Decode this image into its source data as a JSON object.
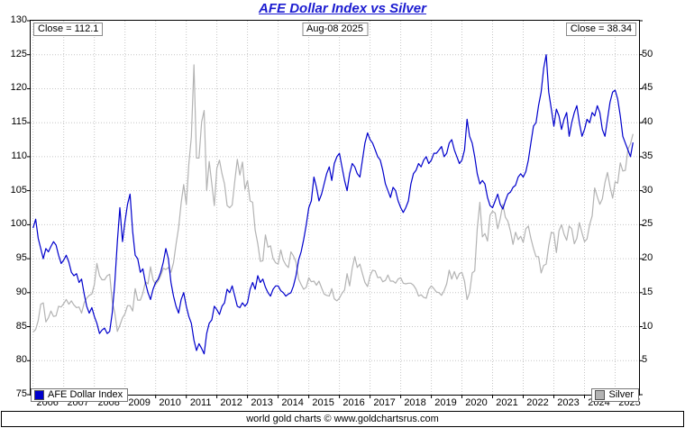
{
  "chart_data": {
    "type": "line",
    "title": "AFE Dollar Index vs Silver",
    "annotations": {
      "left_close": "Close = 112.1",
      "date": "Aug-08  2025",
      "right_close": "Close = 38.34"
    },
    "footer": "world gold charts © www.goldchartsrus.com",
    "colors": {
      "title": "#1b1bd0",
      "afe_line": "#0000cc",
      "silver_line": "#b3b3b3",
      "grid": "#c6c6c6",
      "border": "#000000"
    },
    "x_range": [
      2005.92,
      2025.78
    ],
    "x_start_year": 2006,
    "x_months_per_point": 1,
    "years": [
      2006,
      2007,
      2008,
      2009,
      2010,
      2011,
      2012,
      2013,
      2014,
      2015,
      2016,
      2017,
      2018,
      2019,
      2020,
      2021,
      2022,
      2023,
      2024,
      2025
    ],
    "left_axis": {
      "min": 75,
      "max": 130,
      "step": 5,
      "ticks": [
        130,
        125,
        120,
        115,
        110,
        105,
        100,
        95,
        90,
        85,
        80,
        75
      ]
    },
    "right_axis": {
      "min": 0,
      "max": 55,
      "step": 5,
      "ticks": [
        50,
        45,
        40,
        35,
        30,
        25,
        20,
        15,
        10,
        5
      ]
    },
    "legend": [
      {
        "label": "AFE Dollar Index",
        "color": "#0000cc"
      },
      {
        "label": "Silver",
        "color": "#b3b3b3"
      }
    ],
    "series": [
      {
        "name": "AFE Dollar Index",
        "axis": "left",
        "color": "#0000cc",
        "values": [
          99.5,
          100.8,
          98.0,
          96.5,
          95.0,
          96.5,
          96.0,
          96.8,
          97.5,
          97.0,
          95.5,
          94.3,
          94.8,
          95.5,
          94.5,
          93.0,
          92.5,
          92.8,
          91.5,
          92.0,
          89.8,
          88.0,
          87.0,
          87.8,
          86.5,
          85.5,
          84.0,
          84.5,
          84.8,
          84.0,
          84.3,
          87.0,
          91.5,
          97.5,
          102.5,
          97.5,
          100.5,
          103.0,
          104.5,
          99.0,
          95.5,
          95.0,
          93.0,
          93.5,
          91.5,
          90.0,
          89.0,
          90.5,
          91.5,
          92.0,
          93.0,
          94.5,
          96.5,
          95.0,
          91.5,
          89.5,
          88.0,
          87.0,
          89.0,
          90.0,
          88.0,
          86.5,
          85.5,
          83.0,
          81.5,
          82.5,
          81.8,
          81.0,
          84.0,
          85.5,
          86.0,
          88.0,
          87.5,
          86.8,
          88.0,
          88.5,
          90.5,
          90.0,
          91.0,
          89.5,
          88.0,
          87.8,
          88.5,
          88.0,
          88.5,
          90.5,
          91.5,
          90.5,
          92.5,
          91.5,
          92.0,
          90.8,
          90.0,
          89.5,
          90.5,
          91.0,
          91.0,
          90.3,
          90.0,
          89.5,
          89.8,
          90.0,
          91.0,
          92.5,
          94.8,
          96.0,
          97.8,
          100.0,
          102.5,
          103.5,
          107.0,
          105.5,
          103.5,
          104.5,
          106.0,
          107.5,
          108.5,
          106.5,
          109.0,
          110.0,
          110.5,
          108.5,
          106.5,
          105.0,
          107.5,
          109.0,
          108.5,
          107.5,
          107.0,
          109.5,
          112.0,
          113.5,
          112.5,
          112.0,
          111.0,
          110.0,
          109.5,
          108.0,
          106.0,
          105.0,
          104.0,
          105.5,
          105.0,
          103.5,
          102.5,
          101.8,
          102.5,
          103.5,
          106.0,
          107.5,
          108.0,
          109.0,
          108.5,
          109.5,
          110.0,
          109.0,
          109.5,
          110.5,
          110.5,
          111.0,
          111.5,
          110.0,
          110.5,
          112.0,
          112.5,
          111.0,
          110.0,
          109.0,
          109.5,
          111.0,
          115.5,
          113.0,
          112.0,
          110.0,
          107.5,
          106.0,
          106.5,
          106.0,
          104.0,
          102.8,
          102.5,
          103.5,
          104.5,
          103.0,
          102.3,
          103.5,
          104.5,
          104.8,
          105.5,
          105.8,
          107.0,
          107.5,
          107.0,
          107.8,
          109.5,
          112.0,
          114.5,
          115.0,
          117.5,
          119.5,
          123.0,
          125.0,
          119.5,
          117.0,
          114.5,
          117.0,
          116.0,
          114.0,
          115.5,
          116.5,
          113.0,
          115.0,
          116.5,
          117.5,
          115.0,
          113.0,
          114.0,
          115.5,
          115.0,
          116.5,
          116.0,
          117.5,
          116.5,
          114.0,
          113.0,
          115.5,
          118.0,
          119.5,
          119.8,
          118.5,
          116.0,
          113.0,
          112.0,
          111.0,
          110.0,
          112.1
        ]
      },
      {
        "name": "Silver",
        "axis": "right",
        "color": "#b3b3b3",
        "values": [
          9.2,
          9.6,
          10.9,
          13.3,
          13.5,
          10.7,
          11.3,
          12.3,
          11.5,
          11.6,
          13.0,
          12.9,
          13.4,
          14.0,
          13.3,
          13.8,
          13.2,
          12.8,
          12.9,
          12.0,
          13.5,
          14.2,
          14.6,
          14.8,
          16.2,
          19.3,
          17.5,
          16.9,
          16.9,
          17.5,
          17.7,
          13.7,
          12.0,
          9.3,
          10.2,
          11.3,
          11.9,
          13.1,
          13.1,
          12.3,
          15.6,
          13.9,
          13.9,
          14.9,
          16.6,
          16.3,
          18.8,
          16.9,
          16.2,
          16.7,
          17.5,
          18.6,
          18.4,
          18.7,
          18.0,
          19.4,
          22.1,
          24.6,
          28.2,
          30.9,
          28.0,
          33.9,
          37.9,
          48.5,
          34.8,
          34.8,
          40.1,
          41.8,
          30.0,
          34.3,
          31.0,
          27.8,
          33.3,
          34.5,
          32.5,
          31.0,
          27.8,
          27.5,
          27.9,
          31.4,
          34.6,
          32.3,
          34.2,
          30.2,
          31.5,
          28.5,
          28.3,
          24.2,
          22.2,
          19.6,
          19.7,
          23.5,
          21.7,
          21.9,
          20.0,
          19.4,
          19.2,
          21.3,
          19.8,
          19.1,
          18.7,
          21.0,
          20.4,
          19.5,
          17.0,
          16.2,
          15.5,
          15.8,
          17.2,
          16.6,
          16.7,
          16.1,
          16.7,
          15.7,
          14.8,
          14.6,
          14.5,
          15.6,
          14.1,
          13.8,
          14.2,
          14.9,
          15.4,
          17.8,
          16.0,
          18.6,
          20.3,
          18.7,
          19.2,
          17.8,
          16.5,
          15.9,
          17.5,
          18.3,
          18.2,
          17.2,
          17.3,
          16.6,
          16.8,
          17.6,
          16.7,
          16.7,
          16.4,
          17.0,
          17.2,
          16.4,
          16.3,
          16.4,
          16.4,
          16.1,
          15.5,
          14.5,
          14.7,
          14.3,
          14.2,
          15.5,
          16.0,
          15.6,
          15.1,
          15.0,
          14.6,
          15.3,
          16.3,
          18.3,
          17.0,
          18.1,
          17.0,
          17.8,
          18.0,
          16.7,
          14.0,
          15.0,
          17.9,
          18.2,
          24.4,
          28.3,
          23.2,
          23.7,
          22.6,
          26.4,
          27.0,
          26.7,
          24.4,
          25.9,
          28.0,
          26.1,
          25.5,
          24.0,
          22.1,
          23.9,
          22.8,
          23.3,
          22.4,
          24.4,
          24.8,
          23.0,
          21.5,
          20.3,
          20.3,
          17.9,
          19.0,
          19.2,
          21.9,
          23.9,
          23.7,
          20.9,
          24.1,
          25.0,
          23.6,
          22.7,
          24.8,
          24.4,
          22.2,
          23.0,
          25.3,
          23.8,
          22.5,
          22.9,
          25.0,
          26.3,
          30.4,
          29.1,
          28.0,
          28.8,
          31.2,
          32.7,
          30.6,
          28.9,
          31.3,
          31.1,
          34.1,
          32.9,
          33.0,
          36.1,
          36.9,
          38.34
        ]
      }
    ]
  }
}
